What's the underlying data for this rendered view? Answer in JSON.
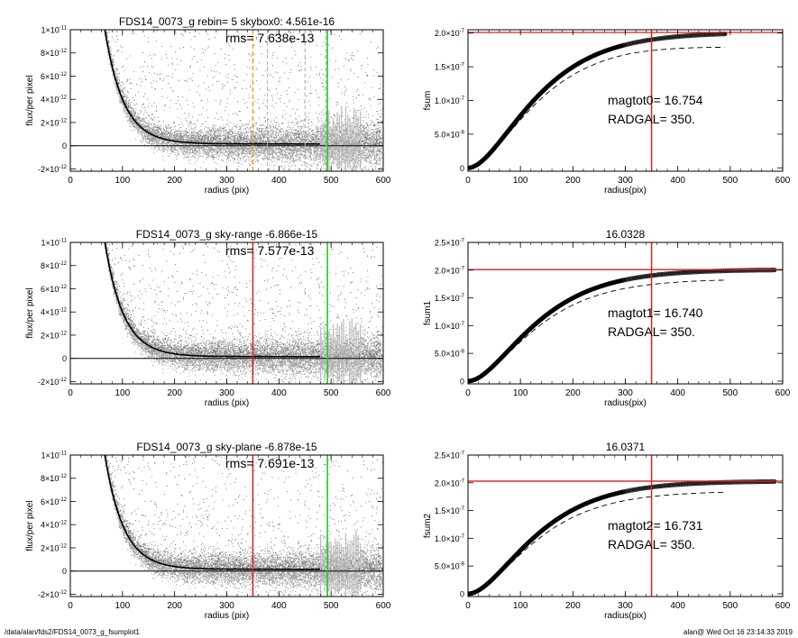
{
  "footer": {
    "path": "/data/alan/fds2/FDS14_0073_g_fsumplot1",
    "stamp": "alan@  Wed Oct 16 23:14:33 2019"
  },
  "colors": {
    "scatter_gray": "#9a9a9a",
    "profile": "#000000",
    "red_line": "#d62020",
    "green_line": "#22cc22",
    "orange_line": "#f0a030",
    "gray_dash": "#999999"
  },
  "chart_data": [
    {
      "id": "flux-1",
      "type": "scatter",
      "title": "FDS14_0073_g rebin= 5    skybox0:  4.561e-16",
      "annotation": "rms= 7.638e-13",
      "xlabel": "radius (pix)",
      "ylabel": "flux/per pixel",
      "xlim": [
        0,
        600
      ],
      "ylim": [
        -2.2e-12,
        1e-11
      ],
      "xticks": [
        0,
        100,
        200,
        300,
        400,
        500,
        600
      ],
      "yticks": [
        {
          "v": -2e-12,
          "m": "-2×10",
          "e": "-12"
        },
        {
          "v": 0,
          "m": "0",
          "e": ""
        },
        {
          "v": 2e-12,
          "m": "2×10",
          "e": "-12"
        },
        {
          "v": 4e-12,
          "m": "4×10",
          "e": "-12"
        },
        {
          "v": 6e-12,
          "m": "6×10",
          "e": "-12"
        },
        {
          "v": 8e-12,
          "m": "8×10",
          "e": "-12"
        },
        {
          "v": 1e-11,
          "m": "1×10",
          "e": "-11"
        }
      ],
      "profile": {
        "amplitude": 6.2e-11,
        "scale": 36,
        "sky": 4.561e-16
      },
      "vlines": [
        {
          "x": 350,
          "color": "#f0a030",
          "dash": "5,3",
          "width": 1.5
        },
        {
          "x": 378,
          "color": "#aaaaaa",
          "dash": "4,3",
          "width": 1
        },
        {
          "x": 450,
          "color": "#aaaaaa",
          "dash": "4,3",
          "width": 1
        },
        {
          "x": 490,
          "color": "#aaaaaa",
          "dash": "4,3",
          "width": 1
        },
        {
          "x": 493,
          "color": "#22cc22",
          "dash": "",
          "width": 1.6
        }
      ],
      "hline": 0
    },
    {
      "id": "fsum-0",
      "type": "line",
      "title": "",
      "annotation": [
        "magtot0=  16.754",
        "RADGAL=    350."
      ],
      "xlabel": "radius(pix)",
      "ylabel": "fsum",
      "xlim": [
        0,
        600
      ],
      "ylim": [
        -5e-09,
        2.05e-07
      ],
      "xticks": [
        0,
        100,
        200,
        300,
        400,
        500,
        600
      ],
      "yticks": [
        {
          "v": 0,
          "m": "0",
          "e": ""
        },
        {
          "v": 5e-08,
          "m": "5.0×10",
          "e": "-8"
        },
        {
          "v": 1e-07,
          "m": "1.0×10",
          "e": "-7"
        },
        {
          "v": 1.5e-07,
          "m": "1.5×10",
          "e": "-7"
        },
        {
          "v": 2e-07,
          "m": "2.0×10",
          "e": "-7"
        }
      ],
      "curve": {
        "total": 2.01e-07,
        "scale": 75,
        "xmax": 490
      },
      "dashed": {
        "total": 1.85e-07,
        "scale": 75,
        "xmax": 490,
        "droop": 4e-09
      },
      "red_vline": 350,
      "red_hline": 2.01e-07
    },
    {
      "id": "flux-2",
      "type": "scatter",
      "title": "FDS14_0073_g sky-range -6.866e-15",
      "annotation": "rms= 7.577e-13",
      "xlabel": "radius (pix)",
      "ylabel": "flux/per pixel",
      "xlim": [
        0,
        600
      ],
      "ylim": [
        -2.2e-12,
        1e-11
      ],
      "xticks": [
        0,
        100,
        200,
        300,
        400,
        500,
        600
      ],
      "yticks": [
        {
          "v": -2e-12,
          "m": "-2×10",
          "e": "-12"
        },
        {
          "v": 0,
          "m": "0",
          "e": ""
        },
        {
          "v": 2e-12,
          "m": "2×10",
          "e": "-12"
        },
        {
          "v": 4e-12,
          "m": "4×10",
          "e": "-12"
        },
        {
          "v": 6e-12,
          "m": "6×10",
          "e": "-12"
        },
        {
          "v": 8e-12,
          "m": "8×10",
          "e": "-12"
        },
        {
          "v": 1e-11,
          "m": "1×10",
          "e": "-11"
        }
      ],
      "profile": {
        "amplitude": 6.2e-11,
        "scale": 36,
        "sky": -6.866e-15
      },
      "vlines": [
        {
          "x": 350,
          "color": "#d62020",
          "dash": "",
          "width": 1.5
        },
        {
          "x": 493,
          "color": "#22cc22",
          "dash": "",
          "width": 1.6
        }
      ],
      "hline": 0
    },
    {
      "id": "fsum-1",
      "type": "line",
      "title": "16.0328",
      "annotation": [
        "magtot1=  16.740",
        "RADGAL=    350."
      ],
      "xlabel": "radius(pix)",
      "ylabel": "fsum1",
      "xlim": [
        0,
        600
      ],
      "ylim": [
        -5e-09,
        2.5e-07
      ],
      "xticks": [
        0,
        100,
        200,
        300,
        400,
        500,
        600
      ],
      "yticks": [
        {
          "v": 0,
          "m": "0",
          "e": ""
        },
        {
          "v": 5e-08,
          "m": "5.0×10",
          "e": "-8"
        },
        {
          "v": 1e-07,
          "m": "1.0×10",
          "e": "-7"
        },
        {
          "v": 1.5e-07,
          "m": "1.5×10",
          "e": "-7"
        },
        {
          "v": 2e-07,
          "m": "2.0×10",
          "e": "-7"
        },
        {
          "v": 2.5e-07,
          "m": "2.5×10",
          "e": "-7"
        }
      ],
      "curve": {
        "total": 2.01e-07,
        "scale": 75,
        "xmax": 585
      },
      "dashed": {
        "total": 1.84e-07,
        "scale": 75,
        "xmax": 490,
        "droop": 0
      },
      "red_vline": 350,
      "red_hline": 2.01e-07
    },
    {
      "id": "flux-3",
      "type": "scatter",
      "title": "FDS14_0073_g sky-plane -6.878e-15",
      "annotation": "rms= 7.691e-13",
      "xlabel": "radius (pix)",
      "ylabel": "flux/per pixel",
      "xlim": [
        0,
        600
      ],
      "ylim": [
        -2.2e-12,
        1e-11
      ],
      "xticks": [
        0,
        100,
        200,
        300,
        400,
        500,
        600
      ],
      "yticks": [
        {
          "v": -2e-12,
          "m": "-2×10",
          "e": "-12"
        },
        {
          "v": 0,
          "m": "0",
          "e": ""
        },
        {
          "v": 2e-12,
          "m": "2×10",
          "e": "-12"
        },
        {
          "v": 4e-12,
          "m": "4×10",
          "e": "-12"
        },
        {
          "v": 6e-12,
          "m": "6×10",
          "e": "-12"
        },
        {
          "v": 8e-12,
          "m": "8×10",
          "e": "-12"
        },
        {
          "v": 1e-11,
          "m": "1×10",
          "e": "-11"
        }
      ],
      "profile": {
        "amplitude": 6.2e-11,
        "scale": 36,
        "sky": -6.878e-15
      },
      "vlines": [
        {
          "x": 350,
          "color": "#d62020",
          "dash": "",
          "width": 1.5
        },
        {
          "x": 493,
          "color": "#22cc22",
          "dash": "",
          "width": 1.6
        }
      ],
      "hline": 0
    },
    {
      "id": "fsum-2",
      "type": "line",
      "title": "16.0371",
      "annotation": [
        "magtot2=  16.731",
        "RADGAL=    350."
      ],
      "xlabel": "radius(pix)",
      "ylabel": "fsum2",
      "xlim": [
        0,
        600
      ],
      "ylim": [
        -5e-09,
        2.5e-07
      ],
      "xticks": [
        0,
        100,
        200,
        300,
        400,
        500,
        600
      ],
      "yticks": [
        {
          "v": 0,
          "m": "0",
          "e": ""
        },
        {
          "v": 5e-08,
          "m": "5.0×10",
          "e": "-8"
        },
        {
          "v": 1e-07,
          "m": "1.0×10",
          "e": "-7"
        },
        {
          "v": 1.5e-07,
          "m": "1.5×10",
          "e": "-7"
        },
        {
          "v": 2e-07,
          "m": "2.0×10",
          "e": "-7"
        },
        {
          "v": 2.5e-07,
          "m": "2.5×10",
          "e": "-7"
        }
      ],
      "curve": {
        "total": 2.03e-07,
        "scale": 75,
        "xmax": 585
      },
      "dashed": {
        "total": 1.85e-07,
        "scale": 75,
        "xmax": 490,
        "droop": 0
      },
      "red_vline": 350,
      "red_hline": 2.03e-07
    }
  ]
}
